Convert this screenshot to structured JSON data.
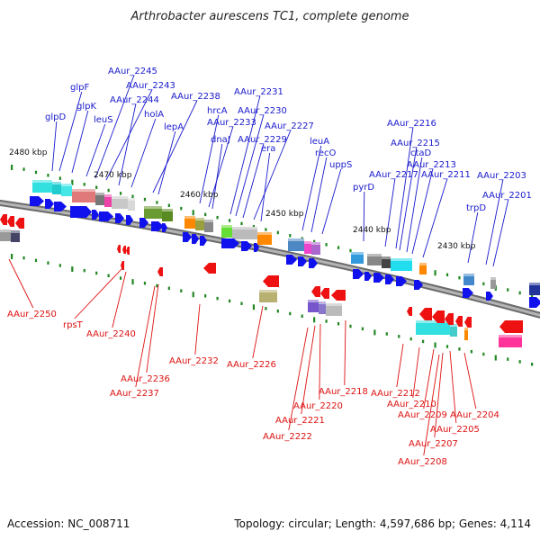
{
  "title": "Arthrobacter aurescens TC1, complete genome",
  "footer": {
    "accession": "Accession: NC_008711",
    "topology": "Topology: circular; Length: 4,597,686 bp; Genes: 4,114"
  },
  "colors": {
    "forward_label": "#1a1acc",
    "reverse_label": "#dd1111",
    "forward_arrow": "#1111ee",
    "reverse_arrow": "#ee1111",
    "backbone": "#888888",
    "tick": "#228822"
  },
  "scale_labels": [
    "2480 kbp",
    "2470 kbp",
    "2460 kbp",
    "2450 kbp",
    "2440 kbp",
    "2430 kbp"
  ],
  "forward_genes": [
    "glpF",
    "glpD",
    "glpK",
    "AAur_2245",
    "AAur_2243",
    "AAur_2244",
    "leuS",
    "holA",
    "AAur_2238",
    "lepA",
    "AAur_2231",
    "hrcA",
    "AAur_2230",
    "AAur_2233",
    "dnaJ",
    "AAur_2227",
    "AAur_2229",
    "era",
    "leuA",
    "recO",
    "uppS",
    "pyrD",
    "AAur_2216",
    "AAur_2215",
    "ctaD",
    "AAur_2213",
    "AAur_2217",
    "AAur_2211",
    "AAur_2203",
    "AAur_2201",
    "trpD"
  ],
  "reverse_genes": [
    "AAur_2250",
    "rpsT",
    "AAur_2240",
    "AAur_2236",
    "AAur_2237",
    "AAur_2232",
    "AAur_2226",
    "AAur_2218",
    "AAur_2220",
    "AAur_2221",
    "AAur_2222",
    "AAur_2212",
    "AAur_2210",
    "AAur_2209",
    "AAur_2204",
    "AAur_2205",
    "AAur_2207",
    "AAur_2208"
  ]
}
